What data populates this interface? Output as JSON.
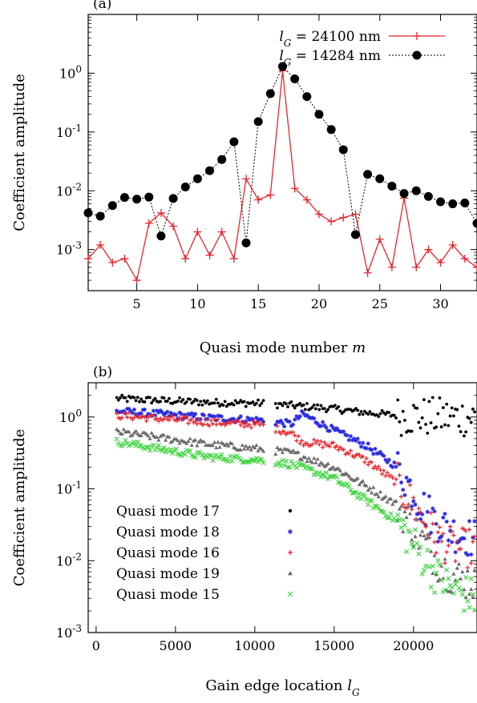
{
  "chart_data": [
    {
      "panel_label": "(a)",
      "type": "line",
      "ylabel": "Coefficient amplitude",
      "xlabel": "Quasi mode number",
      "xlabel_var": "m",
      "xlim": [
        1,
        33
      ],
      "ylim": [
        0.0002,
        10
      ],
      "yscale": "log",
      "x_ticks": [
        5,
        10,
        15,
        20,
        25,
        30
      ],
      "y_ticks": [
        {
          "value": 0.001,
          "base": "10",
          "exp": "-3"
        },
        {
          "value": 0.01,
          "base": "10",
          "exp": "-2"
        },
        {
          "value": 0.1,
          "base": "10",
          "exp": "-1"
        },
        {
          "value": 1,
          "base": "10",
          "exp": "0"
        }
      ],
      "legend_position": "top-right",
      "series": [
        {
          "label_var": "l",
          "label_sub": "G",
          "label_rest": " = 24100 nm",
          "color": "#e8242c",
          "marker": "plus",
          "line": "solid",
          "x": [
            1,
            2,
            3,
            4,
            5,
            6,
            7,
            8,
            9,
            10,
            11,
            12,
            13,
            14,
            15,
            16,
            17,
            18,
            19,
            20,
            21,
            22,
            23,
            24,
            25,
            26,
            27,
            28,
            29,
            30,
            31,
            32,
            33
          ],
          "y": [
            0.0007,
            0.0012,
            0.0006,
            0.0007,
            0.0003,
            0.0028,
            0.0042,
            0.0025,
            0.0007,
            0.002,
            0.0008,
            0.002,
            0.0007,
            0.016,
            0.007,
            0.0085,
            1.1,
            0.011,
            0.007,
            0.004,
            0.003,
            0.0035,
            0.004,
            0.0004,
            0.0015,
            0.0005,
            0.0075,
            0.0005,
            0.001,
            0.0006,
            0.0012,
            0.0007,
            0.0005
          ]
        },
        {
          "label_var": "l",
          "label_sub": "G",
          "label_rest": " = 14284 nm",
          "color": "#000000",
          "marker": "circle",
          "line": "dotted",
          "x": [
            1,
            2,
            3,
            4,
            5,
            6,
            7,
            8,
            9,
            10,
            11,
            12,
            13,
            14,
            15,
            16,
            17,
            18,
            19,
            20,
            21,
            22,
            23,
            24,
            25,
            26,
            27,
            28,
            29,
            30,
            31,
            32,
            33
          ],
          "y": [
            0.0042,
            0.0037,
            0.0056,
            0.0077,
            0.0072,
            0.0078,
            0.0017,
            0.0074,
            0.0116,
            0.016,
            0.022,
            0.034,
            0.068,
            0.0013,
            0.15,
            0.45,
            1.3,
            0.8,
            0.4,
            0.2,
            0.11,
            0.05,
            0.0018,
            0.019,
            0.016,
            0.012,
            0.009,
            0.01,
            0.008,
            0.0065,
            0.006,
            0.0062,
            0.0028
          ]
        }
      ]
    },
    {
      "panel_label": "(b)",
      "type": "scatter",
      "ylabel": "Coefficient amplitude",
      "xlabel": "Gain edge location",
      "xlabel_var": "l",
      "xlabel_sub": "G",
      "xlim": [
        -500,
        24000
      ],
      "ylim": [
        0.001,
        3
      ],
      "yscale": "log",
      "x_ticks": [
        0,
        5000,
        10000,
        15000,
        20000
      ],
      "y_ticks": [
        {
          "value": 0.001,
          "base": "10",
          "exp": "-3"
        },
        {
          "value": 0.01,
          "base": "10",
          "exp": "-2"
        },
        {
          "value": 0.1,
          "base": "10",
          "exp": "-1"
        },
        {
          "value": 1,
          "base": "10",
          "exp": "0"
        }
      ],
      "legend_position": "bottom-left",
      "x_range_sampled": [
        1300,
        23900
      ],
      "x_gap": [
        10600,
        11300
      ],
      "series": [
        {
          "name": "Quasi mode 17",
          "color": "#000000",
          "marker": "dot",
          "x": [
            1400,
            4000,
            7000,
            10400,
            12300,
            15000,
            17000,
            19000,
            21000,
            23900
          ],
          "y": [
            1.8,
            1.7,
            1.6,
            1.55,
            1.45,
            1.3,
            1.15,
            1.05,
            1.0,
            1.0
          ]
        },
        {
          "name": "Quasi mode 18",
          "color": "#2a2ae0",
          "marker": "star",
          "x": [
            1400,
            4000,
            7000,
            10400,
            12300,
            13000,
            15000,
            17000,
            19000,
            20500,
            21500,
            22500,
            23900
          ],
          "y": [
            1.2,
            1.1,
            0.98,
            0.9,
            0.8,
            1.1,
            0.65,
            0.4,
            0.2,
            0.06,
            0.035,
            0.025,
            0.02
          ]
        },
        {
          "name": "Quasi mode 16",
          "color": "#e8242c",
          "marker": "plus",
          "x": [
            1400,
            4000,
            7000,
            10400,
            12300,
            13000,
            15000,
            17000,
            19000,
            20500,
            21500,
            22500,
            23900
          ],
          "y": [
            1.05,
            0.95,
            0.85,
            0.78,
            0.6,
            0.45,
            0.4,
            0.25,
            0.12,
            0.04,
            0.02,
            0.015,
            0.015
          ]
        },
        {
          "name": "Quasi mode 19",
          "color": "#6b6b6b",
          "marker": "triangle",
          "x": [
            1400,
            4000,
            7000,
            10400,
            12300,
            15000,
            17000,
            19000,
            20500,
            21500,
            22500,
            23900
          ],
          "y": [
            0.62,
            0.52,
            0.42,
            0.36,
            0.32,
            0.2,
            0.11,
            0.06,
            0.02,
            0.01,
            0.006,
            0.005
          ]
        },
        {
          "name": "Quasi mode 15",
          "color": "#3cd63c",
          "marker": "cross",
          "x": [
            1400,
            4000,
            7000,
            10400,
            12300,
            15000,
            17000,
            19000,
            20500,
            21500,
            22500,
            23900
          ],
          "y": [
            0.45,
            0.36,
            0.28,
            0.25,
            0.22,
            0.14,
            0.07,
            0.035,
            0.012,
            0.006,
            0.004,
            0.003
          ]
        }
      ]
    }
  ]
}
